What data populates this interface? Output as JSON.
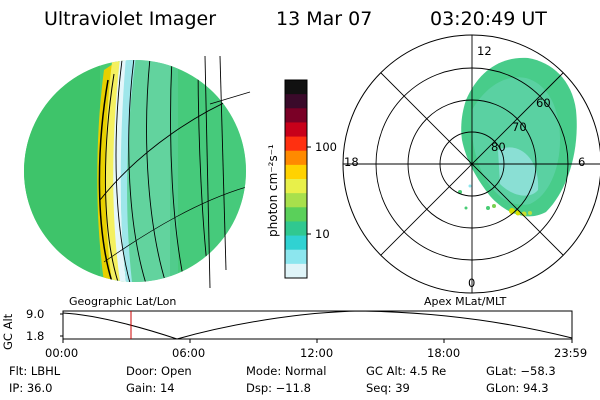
{
  "header": {
    "instrument": "Ultraviolet Imager",
    "date": "13 Mar 07",
    "time": "03:20:49 UT"
  },
  "colorbar": {
    "unit_label": "photon cm⁻²s⁻¹",
    "ticks": [
      "100",
      "10"
    ],
    "colors": [
      "#111111",
      "#3a0a2a",
      "#7a0026",
      "#c8001a",
      "#ff3010",
      "#ff8a00",
      "#ffd200",
      "#e8f04a",
      "#a8e04c",
      "#5ad05a",
      "#30c890",
      "#30d2d2",
      "#8ce6ee",
      "#dff4f8"
    ]
  },
  "polar_plot": {
    "mlt_labels": [
      "12",
      "18",
      "6",
      "0"
    ],
    "lat_labels": [
      "60",
      "70",
      "80"
    ]
  },
  "panels": {
    "left_caption": "Geographic Lat/Lon",
    "right_caption": "Apex MLat/MLT"
  },
  "timeline": {
    "ylabel": "GC Alt",
    "y_ticks": [
      "9.0",
      "1.8"
    ],
    "x_ticks": [
      "00:00",
      "06:00",
      "12:00",
      "18:00",
      "23:59"
    ],
    "current_time_color": "#cc0000"
  },
  "status": {
    "flt": "Flt: LBHL",
    "door": "Door: Open",
    "mode": "Mode: Normal",
    "gc_alt": "GC Alt: 4.5 Re",
    "glat": "GLat: −58.3",
    "ip": "IP: 36.0",
    "gain": "Gain: 14",
    "dsp": "Dsp: −11.8",
    "seq": "Seq: 39",
    "glon": "GLon: 94.3"
  }
}
